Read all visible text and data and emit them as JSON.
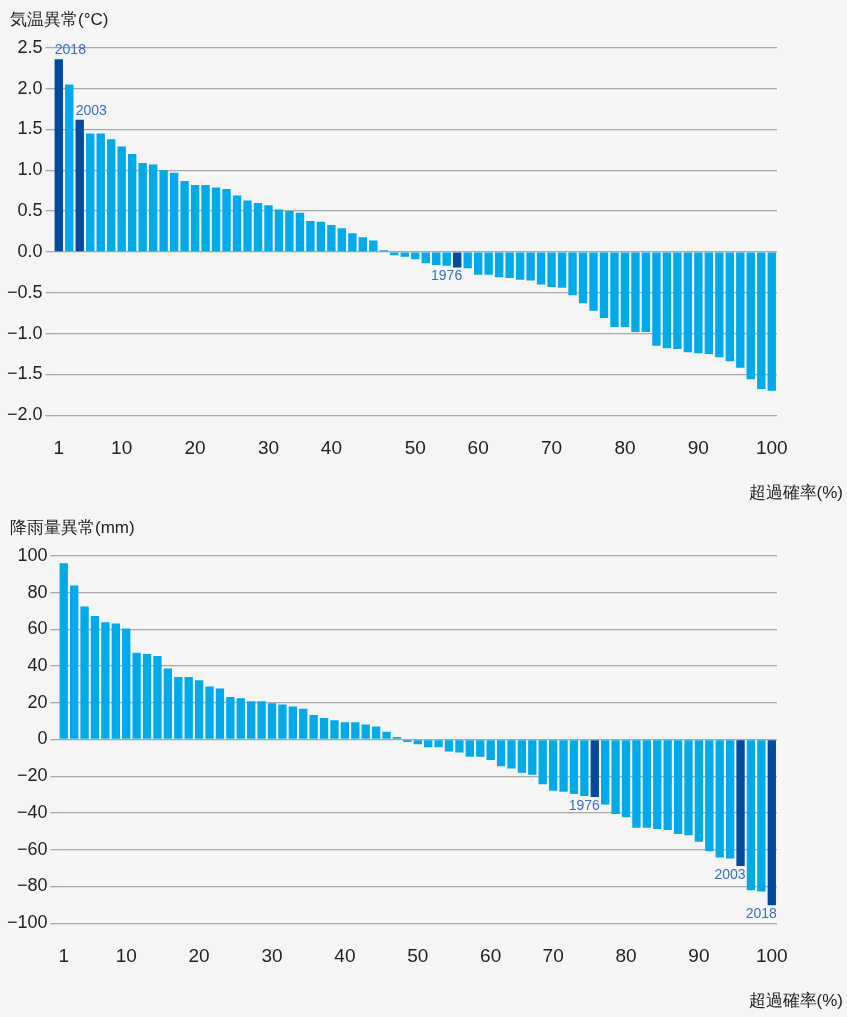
{
  "chart_data": [
    {
      "type": "bar",
      "ylabel": "気温異常(°C)",
      "xlabel": "超過確率(%)",
      "categories": [
        "1",
        null,
        null,
        null,
        null,
        null,
        "10",
        null,
        null,
        null,
        null,
        null,
        null,
        "20",
        null,
        null,
        null,
        null,
        null,
        null,
        "30",
        null,
        null,
        null,
        null,
        null,
        "40",
        null,
        null,
        null,
        null,
        null,
        null,
        null,
        "50",
        null,
        null,
        null,
        null,
        null,
        "60",
        null,
        null,
        null,
        null,
        null,
        null,
        "70",
        null,
        null,
        null,
        null,
        null,
        null,
        "80",
        null,
        null,
        null,
        null,
        null,
        null,
        "90",
        null,
        null,
        null,
        null,
        null,
        null,
        "100"
      ],
      "values": [
        2.36,
        2.05,
        1.62,
        1.45,
        1.45,
        1.38,
        1.29,
        1.2,
        1.09,
        1.07,
        1.0,
        0.97,
        0.87,
        0.82,
        0.82,
        0.79,
        0.77,
        0.69,
        0.63,
        0.6,
        0.57,
        0.52,
        0.5,
        0.48,
        0.38,
        0.37,
        0.33,
        0.29,
        0.23,
        0.18,
        0.14,
        0.02,
        -0.04,
        -0.06,
        -0.09,
        -0.14,
        -0.16,
        -0.17,
        -0.19,
        -0.2,
        -0.28,
        -0.28,
        -0.31,
        -0.32,
        -0.34,
        -0.35,
        -0.4,
        -0.43,
        -0.44,
        -0.53,
        -0.63,
        -0.72,
        -0.81,
        -0.92,
        -0.92,
        -0.98,
        -0.98,
        -1.15,
        -1.18,
        -1.19,
        -1.23,
        -1.24,
        -1.25,
        -1.29,
        -1.34,
        -1.42,
        -1.56,
        -1.68,
        -1.7
      ],
      "colors": [
        "#004b9d",
        "#00aae9",
        "#004b9d",
        "#00aae9",
        "#00aae9",
        "#00aae9",
        "#00aae9",
        "#00aae9",
        "#00aae9",
        "#00aae9",
        "#00aae9",
        "#00aae9",
        "#00aae9",
        "#00aae9",
        "#00aae9",
        "#00aae9",
        "#00aae9",
        "#00aae9",
        "#00aae9",
        "#00aae9",
        "#00aae9",
        "#00aae9",
        "#00aae9",
        "#00aae9",
        "#00aae9",
        "#00aae9",
        "#00aae9",
        "#00aae9",
        "#00aae9",
        "#00aae9",
        "#00aae9",
        "#00aae9",
        "#00aae9",
        "#00aae9",
        "#00aae9",
        "#00aae9",
        "#00aae9",
        "#00aae9",
        "#004b9d",
        "#00aae9",
        "#00aae9",
        "#00aae9",
        "#00aae9",
        "#00aae9",
        "#00aae9",
        "#00aae9",
        "#00aae9",
        "#00aae9",
        "#00aae9",
        "#00aae9",
        "#00aae9",
        "#00aae9",
        "#00aae9",
        "#00aae9",
        "#00aae9",
        "#00aae9",
        "#00aae9",
        "#00aae9",
        "#00aae9",
        "#00aae9",
        "#00aae9",
        "#00aae9",
        "#00aae9",
        "#00aae9",
        "#00aae9",
        "#00aae9",
        "#00aae9",
        "#00aae9",
        "#00aae9"
      ],
      "ylim": [
        -2,
        2.5
      ],
      "yticks": [
        {
          "value": -2,
          "label": "−2.0"
        },
        {
          "value": -1.5,
          "label": "−1.5"
        },
        {
          "value": -1,
          "label": "−1.0"
        },
        {
          "value": -0.5,
          "label": "−0.5"
        },
        {
          "value": 0,
          "label": "0.0"
        },
        {
          "value": 0.5,
          "label": "0.5"
        },
        {
          "value": 1,
          "label": "1.0"
        },
        1.5,
        {
          "value": 2,
          "label": "2.0"
        },
        2.5
      ],
      "grid": "y",
      "annotations": [
        {
          "text": "2018",
          "x": "1",
          "y": 2.36
        },
        "2003",
        {
          "text": "1976",
          "y": -0.19
        }
      ]
    },
    {
      "type": "bar",
      "ylabel": "降雨量異常(mm)",
      "xlabel": "超過確率(%)",
      "categories": [
        "1",
        null,
        null,
        null,
        null,
        null,
        "10",
        null,
        null,
        null,
        null,
        null,
        null,
        "20",
        null,
        null,
        null,
        null,
        null,
        null,
        "30",
        null,
        null,
        null,
        null,
        null,
        null,
        "40",
        null,
        null,
        null,
        null,
        null,
        null,
        "50",
        null,
        null,
        null,
        null,
        null,
        null,
        "60",
        null,
        null,
        null,
        null,
        null,
        "70",
        null,
        null,
        null,
        null,
        null,
        null,
        "80",
        null,
        null,
        null,
        null,
        null,
        null,
        "90",
        null,
        null,
        null,
        null,
        null,
        null,
        "100"
      ],
      "values": [
        95.9,
        83.9,
        72.4,
        67.2,
        63.8,
        63.2,
        60.4,
        47.2,
        46.6,
        45.5,
        38.6,
        34.0,
        34.0,
        32.3,
        28.8,
        27.7,
        23.1,
        22.5,
        20.8,
        20.8,
        19.7,
        19.1,
        18.0,
        16.8,
        13.4,
        11.7,
        10.5,
        9.4,
        9.4,
        8.2,
        7.1,
        4.2,
        1.3,
        -1.4,
        -2.6,
        -4.2,
        -4.2,
        -6.5,
        -7.1,
        -9.4,
        -9.4,
        -11.2,
        -14.6,
        -15.8,
        -18.1,
        -19.2,
        -24.4,
        -27.9,
        -28.5,
        -29.6,
        -30.8,
        -31.3,
        -35.4,
        -40.6,
        -42.3,
        -48.1,
        -48.1,
        -48.7,
        -49.2,
        -51.5,
        -52.1,
        -55.6,
        -60.8,
        -64.2,
        -64.8,
        -68.8,
        -82.1,
        -82.7,
        -90.2
      ],
      "colors": [
        "#00aae9",
        "#00aae9",
        "#00aae9",
        "#00aae9",
        "#00aae9",
        "#00aae9",
        "#00aae9",
        "#00aae9",
        "#00aae9",
        "#00aae9",
        "#00aae9",
        "#00aae9",
        "#00aae9",
        "#00aae9",
        "#00aae9",
        "#00aae9",
        "#00aae9",
        "#00aae9",
        "#00aae9",
        "#00aae9",
        "#00aae9",
        "#00aae9",
        "#00aae9",
        "#00aae9",
        "#00aae9",
        "#00aae9",
        "#00aae9",
        "#00aae9",
        "#00aae9",
        "#00aae9",
        "#00aae9",
        "#00aae9",
        "#00aae9",
        "#00aae9",
        "#00aae9",
        "#00aae9",
        "#00aae9",
        "#00aae9",
        "#00aae9",
        "#00aae9",
        "#00aae9",
        "#00aae9",
        "#00aae9",
        "#00aae9",
        "#00aae9",
        "#00aae9",
        "#00aae9",
        "#00aae9",
        "#00aae9",
        "#00aae9",
        "#00aae9",
        "#004b9d",
        "#00aae9",
        "#00aae9",
        "#00aae9",
        "#00aae9",
        "#00aae9",
        "#00aae9",
        "#00aae9",
        "#00aae9",
        "#00aae9",
        "#00aae9",
        "#00aae9",
        "#00aae9",
        "#00aae9",
        "#004b9d",
        "#00aae9",
        "#00aae9",
        "#004b9d"
      ],
      "ylim": [
        -100,
        100
      ],
      "yticks": [
        {
          "value": -100,
          "label": "−100"
        },
        {
          "value": -80,
          "label": "−80"
        },
        {
          "value": -60,
          "label": "−60"
        },
        {
          "value": -40,
          "label": "−40"
        },
        {
          "value": -20,
          "label": "−20"
        },
        0,
        20,
        40,
        60,
        80,
        100
      ],
      "grid": "y",
      "annotations": [
        {
          "text": "1976",
          "y": -31.3
        },
        "2003",
        {
          "text": "2018",
          "x": "100",
          "y": -90.2
        }
      ]
    }
  ]
}
